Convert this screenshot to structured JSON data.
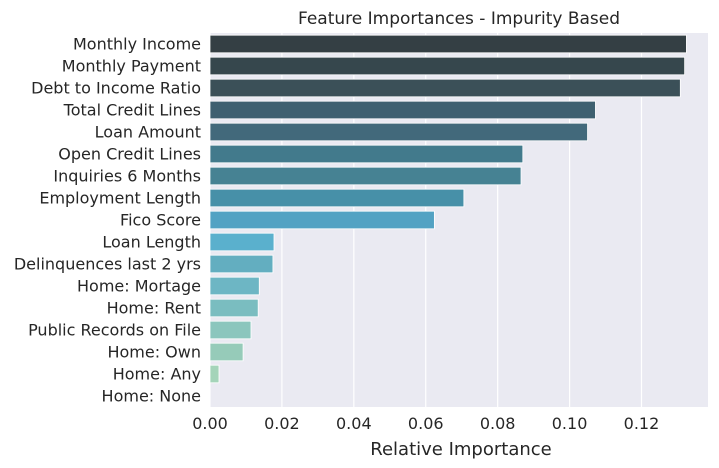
{
  "chart_data": {
    "type": "bar",
    "orientation": "horizontal",
    "title": "Feature Importances - Impurity Based",
    "xlabel": "Relative Importance",
    "ylabel": "",
    "xlim": [
      0,
      0.1385
    ],
    "xticks": [
      "0.00",
      "0.02",
      "0.04",
      "0.06",
      "0.08",
      "0.10",
      "0.12"
    ],
    "xtick_values": [
      0,
      0.02,
      0.04,
      0.06,
      0.08,
      0.1,
      0.12
    ],
    "grid": true,
    "background": "#eaeaf2",
    "categories": [
      "Monthly Income",
      "Monthly Payment",
      "Debt to Income Ratio",
      "Total Credit Lines",
      "Loan Amount",
      "Open Credit Lines",
      "Inquiries 6 Months",
      "Employment Length",
      "Fico Score",
      "Loan Length",
      "Delinquences last 2 yrs",
      "Home: Mortage",
      "Home: Rent",
      "Public Records on File",
      "Home: Own",
      "Home: Any",
      "Home: None"
    ],
    "values": [
      0.1325,
      0.132,
      0.1308,
      0.1072,
      0.105,
      0.087,
      0.0865,
      0.0706,
      0.0624,
      0.0178,
      0.0175,
      0.0137,
      0.0134,
      0.0114,
      0.0092,
      0.0025,
      0.0
    ],
    "colors": [
      "#343f44",
      "#36474d",
      "#3b5058",
      "#3e6070",
      "#42697b",
      "#427a8c",
      "#468293",
      "#4790a8",
      "#52a2c3",
      "#5ab0cd",
      "#63aec0",
      "#6db6c4",
      "#7abdc0",
      "#8bc6bd",
      "#96cbb9",
      "#a4d4b9",
      "#b5deb8"
    ]
  }
}
